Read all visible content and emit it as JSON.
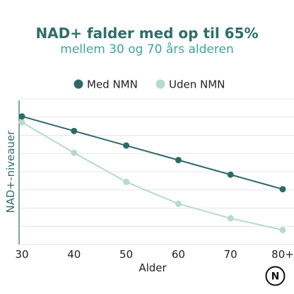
{
  "chart_data": {
    "type": "line",
    "title": "NAD+ falder med op til 65%",
    "subtitle": "mellem 30 og 70 års alderen",
    "categories": [
      "30",
      "40",
      "50",
      "60",
      "70",
      "80+"
    ],
    "series": [
      {
        "name": "Med NMN",
        "color": "#2c6a67",
        "values": [
          88,
          78,
          68,
          58,
          48,
          38
        ]
      },
      {
        "name": "Uden NMN",
        "color": "#b6dcc9",
        "values": [
          84,
          63,
          43,
          28,
          18,
          10
        ]
      }
    ],
    "xlabel": "Alder",
    "ylabel": "NAD+-niveauer",
    "ylim": [
      0,
      100
    ],
    "grid": true,
    "legend_position": "top-center"
  },
  "logo": {
    "letter": "N"
  }
}
